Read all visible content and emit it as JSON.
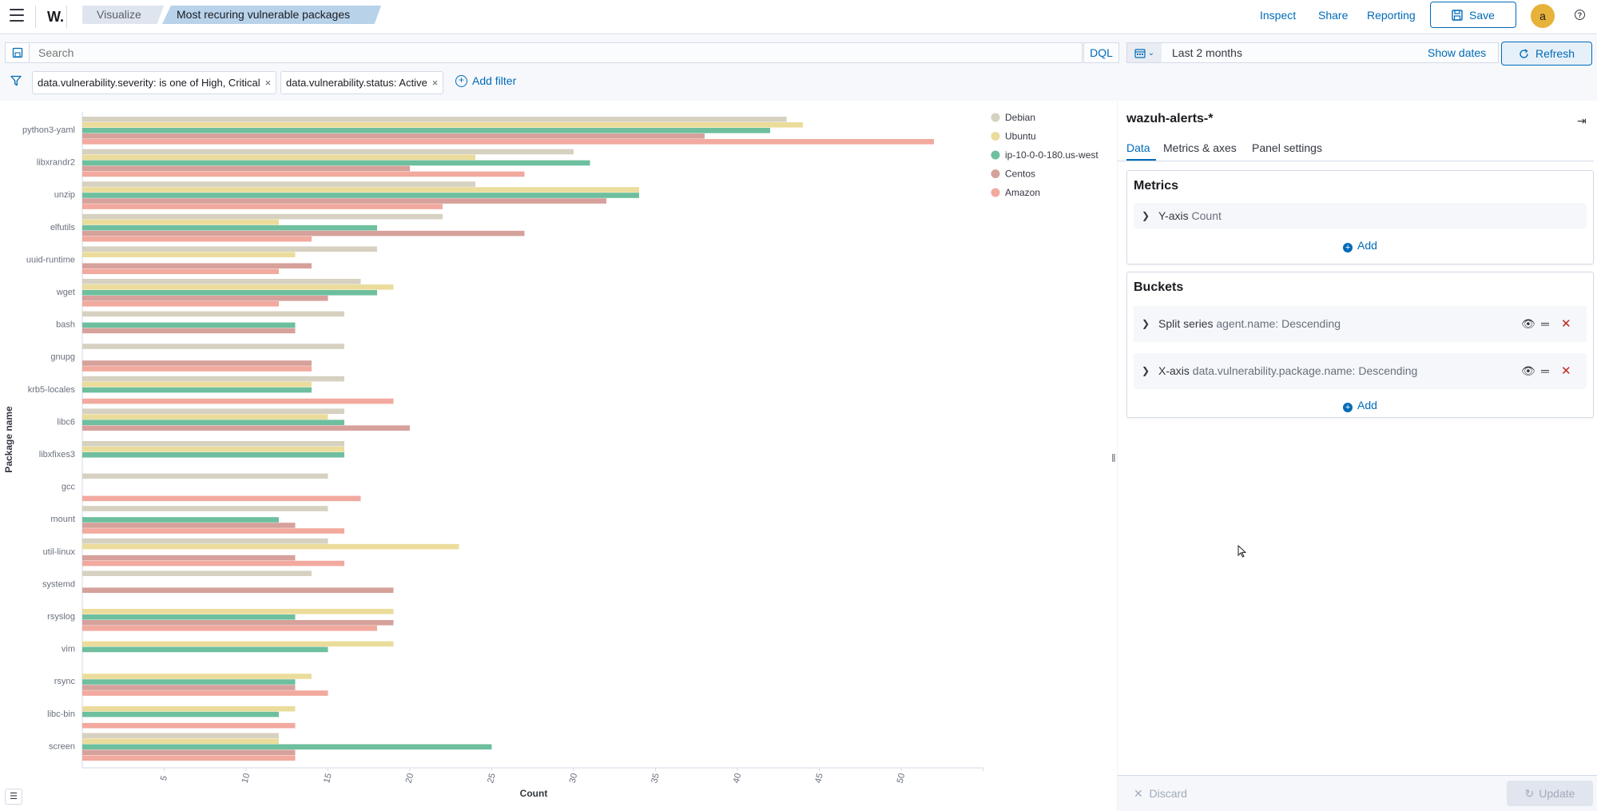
{
  "header": {
    "logo": "W.",
    "breadcrumbs": [
      "Visualize",
      "Most recuring vulnerable packages"
    ],
    "links": {
      "inspect": "Inspect",
      "share": "Share",
      "reporting": "Reporting"
    },
    "save_label": "Save",
    "avatar_initial": "a",
    "help": "?"
  },
  "query": {
    "placeholder": "Search",
    "language": "DQL",
    "date_range": "Last 2 months",
    "show_dates": "Show dates",
    "refresh_label": "Refresh"
  },
  "filters": {
    "pills": [
      "data.vulnerability.severity: is one of High, Critical",
      "data.vulnerability.status: Active"
    ],
    "remove_glyph": "×",
    "add_filter": "Add filter"
  },
  "panel": {
    "index_pattern": "wazuh-alerts-*",
    "tabs": [
      "Data",
      "Metrics & axes",
      "Panel settings"
    ],
    "active_tab": "Data",
    "metrics": {
      "title": "Metrics",
      "items": [
        {
          "title": "Y-axis",
          "desc": "Count"
        }
      ],
      "add_label": "Add"
    },
    "buckets": {
      "title": "Buckets",
      "items": [
        {
          "title": "Split series",
          "desc": "agent.name: Descending"
        },
        {
          "title": "X-axis",
          "desc": "data.vulnerability.package.name: Descending"
        }
      ],
      "add_label": "Add"
    },
    "discard_label": "Discard",
    "update_label": "Update"
  },
  "colors": {
    "accent": "#006bb8",
    "danger": "#bd271e"
  },
  "chart_data": {
    "type": "bar",
    "orientation": "horizontal",
    "ylabel": "Package name",
    "xlabel": "Count",
    "xlim": [
      0,
      55
    ],
    "xticks": [
      5,
      10,
      15,
      20,
      25,
      30,
      35,
      40,
      45,
      50
    ],
    "grid": false,
    "legend_position": "top-right",
    "categories": [
      "python3-yaml",
      "libxrandr2",
      "unzip",
      "elfutils",
      "uuid-runtime",
      "wget",
      "bash",
      "gnupg",
      "krb5-locales",
      "libc6",
      "libxfixes3",
      "gcc",
      "mount",
      "util-linux",
      "systemd",
      "rsyslog",
      "vim",
      "rsync",
      "libc-bin",
      "screen"
    ],
    "series": [
      {
        "name": "Debian",
        "color": "#d6d1c0",
        "values": [
          43,
          30,
          24,
          22,
          18,
          17,
          16,
          16,
          16,
          16,
          16,
          15,
          15,
          15,
          14,
          null,
          null,
          null,
          null,
          12
        ]
      },
      {
        "name": "Ubuntu",
        "color": "#ebdc9c",
        "values": [
          44,
          24,
          34,
          12,
          13,
          19,
          null,
          null,
          14,
          15,
          16,
          null,
          null,
          23,
          null,
          19,
          19,
          14,
          13,
          12
        ]
      },
      {
        "name": "ip-10-0-0-180.us-west",
        "color": "#6dbf9e",
        "values": [
          42,
          31,
          34,
          18,
          null,
          18,
          13,
          null,
          14,
          16,
          16,
          null,
          12,
          null,
          null,
          13,
          15,
          13,
          12,
          25
        ]
      },
      {
        "name": "Centos",
        "color": "#d6a19b",
        "values": [
          38,
          20,
          32,
          27,
          14,
          15,
          13,
          14,
          null,
          20,
          null,
          null,
          13,
          13,
          19,
          19,
          null,
          13,
          null,
          13
        ]
      },
      {
        "name": "Amazon",
        "color": "#f2a99e",
        "values": [
          52,
          27,
          22,
          14,
          12,
          12,
          null,
          14,
          19,
          null,
          null,
          17,
          16,
          16,
          null,
          18,
          null,
          15,
          13,
          13
        ]
      }
    ]
  }
}
